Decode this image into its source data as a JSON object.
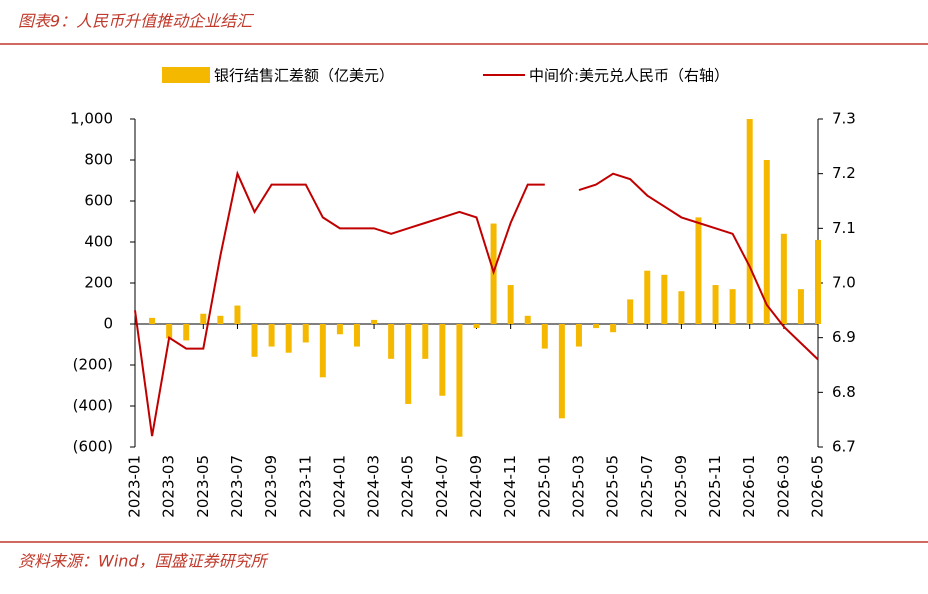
{
  "chart_data": {
    "type": "combo",
    "title": "图表9：人民币升值推动企业结汇",
    "source": "资料来源：Wind，国盛证券研究所",
    "categories": [
      "2023-01",
      null,
      "2023-03",
      null,
      "2023-05",
      null,
      "2023-07",
      null,
      "2023-09",
      null,
      "2023-11",
      null,
      "2024-01",
      null,
      "2024-03",
      null,
      "2024-05",
      null,
      "2024-07",
      null,
      "2024-09",
      null,
      "2024-11",
      null,
      "2025-01",
      null,
      "2025-03",
      null,
      "2025-05",
      null,
      "2025-07",
      null,
      "2025-09",
      null,
      "2025-11",
      null,
      "2026-01",
      null,
      "2026-03",
      null,
      "2026-05"
    ],
    "series": [
      {
        "name": "银行结售汇差额（亿美元）",
        "type": "bar",
        "color": "#f5b800",
        "values": [
          null,
          30,
          -70,
          -80,
          50,
          40,
          90,
          -160,
          -110,
          -140,
          -90,
          -260,
          -50,
          -110,
          20,
          -170,
          -390,
          -170,
          -350,
          -550,
          -20,
          490,
          190,
          40,
          -120,
          -460,
          -110,
          -20,
          -40,
          120,
          260,
          240,
          160,
          520,
          190,
          170,
          1000,
          800,
          440,
          170,
          410
        ]
      },
      {
        "name": "中间价:美元兑人民币（右轴）",
        "type": "line",
        "color": "#c00000",
        "axis": "y2",
        "values": [
          6.95,
          6.72,
          6.9,
          6.88,
          6.88,
          7.05,
          7.2,
          7.13,
          7.18,
          7.18,
          7.18,
          7.12,
          7.1,
          7.1,
          7.1,
          7.09,
          7.1,
          7.11,
          7.12,
          7.13,
          7.12,
          7.02,
          7.11,
          7.18,
          7.18,
          null,
          7.17,
          7.18,
          7.2,
          7.19,
          7.16,
          7.14,
          7.12,
          7.11,
          7.1,
          7.09,
          7.03,
          6.96,
          6.92,
          6.89,
          6.86
        ]
      }
    ],
    "ylim": [
      -600,
      1000
    ],
    "yticks": [
      {
        "value": -600,
        "label": "(600)"
      },
      {
        "value": -400,
        "label": "(400)"
      },
      {
        "value": -200,
        "label": "(200)"
      },
      0,
      200,
      400,
      600,
      800,
      {
        "value": 1000,
        "label": "1,000"
      }
    ],
    "y2lim": [
      6.7,
      7.3
    ],
    "y2ticks": [
      6.7,
      6.8,
      6.9,
      {
        "value": 7,
        "label": "7.0"
      },
      7.1,
      7.2,
      7.3
    ],
    "legend": "top",
    "grid": false
  }
}
